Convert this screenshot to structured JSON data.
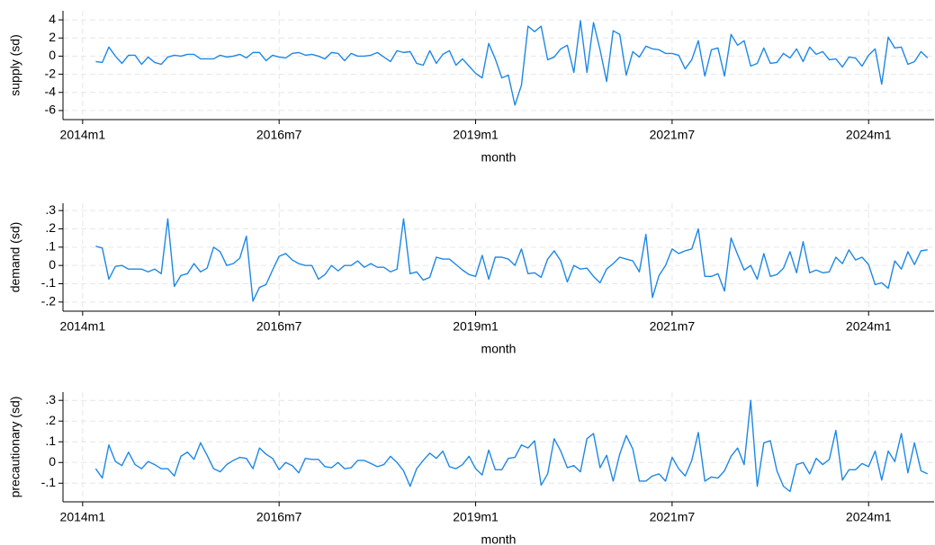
{
  "chart_data": [
    {
      "type": "line",
      "ylabel": "supply (sd)",
      "xlabel": "month",
      "grid": true,
      "color": "#1e88e5",
      "x": [
        "2014m3",
        "2014m4",
        "2014m5",
        "2014m6",
        "2014m7",
        "2014m8",
        "2014m9",
        "2014m10",
        "2014m11",
        "2014m12",
        "2015m1",
        "2015m2",
        "2015m3",
        "2015m4",
        "2015m5",
        "2015m6",
        "2015m7",
        "2015m8",
        "2015m9",
        "2015m10",
        "2015m11",
        "2015m12",
        "2016m1",
        "2016m2",
        "2016m3",
        "2016m4",
        "2016m5",
        "2016m6",
        "2016m7",
        "2016m8",
        "2016m9",
        "2016m10",
        "2016m11",
        "2016m12",
        "2017m1",
        "2017m2",
        "2017m3",
        "2017m4",
        "2017m5",
        "2017m6",
        "2017m7",
        "2017m8",
        "2017m9",
        "2017m10",
        "2017m11",
        "2017m12",
        "2018m1",
        "2018m2",
        "2018m3",
        "2018m4",
        "2018m5",
        "2018m6",
        "2018m7",
        "2018m8",
        "2018m9",
        "2018m10",
        "2018m11",
        "2018m12",
        "2019m1",
        "2019m2",
        "2019m3",
        "2019m4",
        "2019m5",
        "2019m6",
        "2019m7",
        "2019m8",
        "2019m9",
        "2019m10",
        "2019m11",
        "2019m12",
        "2020m1",
        "2020m2",
        "2020m3",
        "2020m4",
        "2020m5",
        "2020m6",
        "2020m7",
        "2020m8",
        "2020m9",
        "2020m10",
        "2020m11",
        "2020m12",
        "2021m1",
        "2021m2",
        "2021m3",
        "2021m4",
        "2021m5",
        "2021m6",
        "2021m7",
        "2021m8",
        "2021m9",
        "2021m10",
        "2021m11",
        "2021m12",
        "2022m1",
        "2022m2",
        "2022m3",
        "2022m4",
        "2022m5",
        "2022m6",
        "2022m7",
        "2022m8",
        "2022m9",
        "2022m10",
        "2022m11",
        "2022m12",
        "2023m1",
        "2023m2",
        "2023m3",
        "2023m4",
        "2023m5",
        "2023m6",
        "2023m7",
        "2023m8",
        "2023m9",
        "2023m10",
        "2023m11",
        "2023m12",
        "2024m1",
        "2024m2",
        "2024m3",
        "2024m4",
        "2024m5",
        "2024m6",
        "2024m7",
        "2024m8",
        "2024m9",
        "2024m10"
      ],
      "values": [
        -0.6,
        -0.7,
        1.0,
        0,
        -0.8,
        0.1,
        0.1,
        -0.9,
        -0.1,
        -0.7,
        -0.9,
        -0.1,
        0.1,
        0,
        0.2,
        0.2,
        -0.3,
        -0.3,
        -0.3,
        0.1,
        -0.1,
        0,
        0.2,
        -0.2,
        0.4,
        0.4,
        -0.5,
        0.1,
        -0.1,
        -0.2,
        0.3,
        0.4,
        0.1,
        0.2,
        0,
        -0.3,
        0.4,
        0.3,
        -0.5,
        0.3,
        0,
        0,
        0.1,
        0.4,
        -0.1,
        -0.6,
        0.6,
        0.4,
        0.5,
        -0.8,
        -1,
        0.6,
        -0.8,
        0.2,
        0.6,
        -1,
        -0.3,
        -1.1,
        -1.9,
        -2.4,
        1.4,
        -0.3,
        -2.4,
        -2.1,
        -5.4,
        -3.2,
        3.3,
        2.7,
        3.3,
        -0.4,
        -0.1,
        0.8,
        1.2,
        -1.8,
        3.9,
        -1.8,
        3.7,
        0.7,
        -2.8,
        2.8,
        2.4,
        -2.1,
        0.5,
        -0.1,
        1.1,
        0.8,
        0.7,
        0.3,
        0.3,
        0.1,
        -1.4,
        -0.4,
        1.7,
        -2.2,
        0.7,
        0.9,
        -2.2,
        2.4,
        1.2,
        1.7,
        -1.1,
        -0.8,
        0.9,
        -0.8,
        -0.7,
        0.3,
        -0.2,
        0.8,
        -0.6,
        1.0,
        0.2,
        0.5,
        -0.4,
        -0.3,
        -1.2,
        -0.1,
        -0.2,
        -1.1,
        0.1,
        0.8,
        -3.1,
        2.1,
        0.9,
        1.0,
        -0.9,
        -0.6,
        0.5,
        -0.2
      ],
      "xlim": [
        "2013m10",
        "2024m11"
      ],
      "xticks": [
        "2014m1",
        "2016m7",
        "2019m1",
        "2021m7",
        "2024m1"
      ],
      "ylim": [
        -7,
        5
      ],
      "yticks": [
        -6,
        -4,
        -2,
        0,
        2,
        4
      ]
    },
    {
      "type": "line",
      "ylabel": "demand (sd)",
      "xlabel": "month",
      "grid": true,
      "color": "#1e88e5",
      "x": [
        "2014m3",
        "2014m4",
        "2014m5",
        "2014m6",
        "2014m7",
        "2014m8",
        "2014m9",
        "2014m10",
        "2014m11",
        "2014m12",
        "2015m1",
        "2015m2",
        "2015m3",
        "2015m4",
        "2015m5",
        "2015m6",
        "2015m7",
        "2015m8",
        "2015m9",
        "2015m10",
        "2015m11",
        "2015m12",
        "2016m1",
        "2016m2",
        "2016m3",
        "2016m4",
        "2016m5",
        "2016m6",
        "2016m7",
        "2016m8",
        "2016m9",
        "2016m10",
        "2016m11",
        "2016m12",
        "2017m1",
        "2017m2",
        "2017m3",
        "2017m4",
        "2017m5",
        "2017m6",
        "2017m7",
        "2017m8",
        "2017m9",
        "2017m10",
        "2017m11",
        "2017m12",
        "2018m1",
        "2018m2",
        "2018m3",
        "2018m4",
        "2018m5",
        "2018m6",
        "2018m7",
        "2018m8",
        "2018m9",
        "2018m10",
        "2018m11",
        "2018m12",
        "2019m1",
        "2019m2",
        "2019m3",
        "2019m4",
        "2019m5",
        "2019m6",
        "2019m7",
        "2019m8",
        "2019m9",
        "2019m10",
        "2019m11",
        "2019m12",
        "2020m1",
        "2020m2",
        "2020m3",
        "2020m4",
        "2020m5",
        "2020m6",
        "2020m7",
        "2020m8",
        "2020m9",
        "2020m10",
        "2020m11",
        "2020m12",
        "2021m1",
        "2021m2",
        "2021m3",
        "2021m4",
        "2021m5",
        "2021m6",
        "2021m7",
        "2021m8",
        "2021m9",
        "2021m10",
        "2021m11",
        "2021m12",
        "2022m1",
        "2022m2",
        "2022m3",
        "2022m4",
        "2022m5",
        "2022m6",
        "2022m7",
        "2022m8",
        "2022m9",
        "2022m10",
        "2022m11",
        "2022m12",
        "2023m1",
        "2023m2",
        "2023m3",
        "2023m4",
        "2023m5",
        "2023m6",
        "2023m7",
        "2023m8",
        "2023m9",
        "2023m10",
        "2023m11",
        "2023m12",
        "2024m1",
        "2024m2",
        "2024m3",
        "2024m4",
        "2024m5",
        "2024m6",
        "2024m7",
        "2024m8",
        "2024m9",
        "2024m10"
      ],
      "values": [
        0.105,
        0.095,
        -0.075,
        -0.005,
        0,
        -0.02,
        -0.02,
        -0.02,
        -0.035,
        -0.02,
        -0.045,
        0.255,
        -0.115,
        -0.055,
        -0.045,
        0.01,
        -0.035,
        -0.015,
        0.1,
        0.075,
        0,
        0.01,
        0.04,
        0.16,
        -0.195,
        -0.12,
        -0.105,
        -0.025,
        0.05,
        0.065,
        0.03,
        0.01,
        0,
        0,
        -0.075,
        -0.05,
        0,
        -0.03,
        0,
        0,
        0.025,
        -0.01,
        0.01,
        -0.01,
        -0.01,
        -0.035,
        -0.02,
        0.255,
        -0.045,
        -0.035,
        -0.08,
        -0.065,
        0.045,
        0.035,
        0.035,
        0.005,
        -0.025,
        -0.05,
        -0.06,
        0.055,
        -0.075,
        0.045,
        0.045,
        0.035,
        0,
        0.09,
        -0.045,
        -0.04,
        -0.065,
        0.035,
        0.08,
        0.025,
        -0.09,
        0,
        -0.02,
        -0.015,
        -0.06,
        -0.095,
        -0.02,
        0.01,
        0.045,
        0.035,
        0.025,
        -0.035,
        0.17,
        -0.175,
        -0.055,
        0,
        0.09,
        0.065,
        0.08,
        0.09,
        0.2,
        -0.06,
        -0.06,
        -0.045,
        -0.14,
        0.15,
        0.06,
        -0.025,
        0,
        -0.075,
        0.065,
        -0.06,
        -0.05,
        -0.015,
        0.075,
        -0.04,
        0.13,
        -0.04,
        -0.025,
        -0.04,
        -0.035,
        0.045,
        0.01,
        0.085,
        0.03,
        0.045,
        0.005,
        -0.105,
        -0.095,
        -0.125,
        0.025,
        -0.02,
        0.075,
        0.005,
        0.08,
        0.085
      ],
      "xlim": [
        "2013m10",
        "2024m11"
      ],
      "xticks": [
        "2014m1",
        "2016m7",
        "2019m1",
        "2021m7",
        "2024m1"
      ],
      "ylim": [
        -0.25,
        0.34
      ],
      "yticks": [
        {
          "value": -0.2,
          "label": "-.2"
        },
        {
          "value": -0.1,
          "label": "-.1"
        },
        0,
        {
          "value": 0.1,
          "label": ".1"
        },
        {
          "value": 0.2,
          "label": ".2"
        },
        {
          "value": 0.3,
          "label": ".3"
        }
      ]
    },
    {
      "type": "line",
      "ylabel": "precautionary (sd)",
      "xlabel": "month",
      "grid": true,
      "color": "#1e88e5",
      "x": [
        "2014m3",
        "2014m4",
        "2014m5",
        "2014m6",
        "2014m7",
        "2014m8",
        "2014m9",
        "2014m10",
        "2014m11",
        "2014m12",
        "2015m1",
        "2015m2",
        "2015m3",
        "2015m4",
        "2015m5",
        "2015m6",
        "2015m7",
        "2015m8",
        "2015m9",
        "2015m10",
        "2015m11",
        "2015m12",
        "2016m1",
        "2016m2",
        "2016m3",
        "2016m4",
        "2016m5",
        "2016m6",
        "2016m7",
        "2016m8",
        "2016m9",
        "2016m10",
        "2016m11",
        "2016m12",
        "2017m1",
        "2017m2",
        "2017m3",
        "2017m4",
        "2017m5",
        "2017m6",
        "2017m7",
        "2017m8",
        "2017m9",
        "2017m10",
        "2017m11",
        "2017m12",
        "2018m1",
        "2018m2",
        "2018m3",
        "2018m4",
        "2018m5",
        "2018m6",
        "2018m7",
        "2018m8",
        "2018m9",
        "2018m10",
        "2018m11",
        "2018m12",
        "2019m1",
        "2019m2",
        "2019m3",
        "2019m4",
        "2019m5",
        "2019m6",
        "2019m7",
        "2019m8",
        "2019m9",
        "2019m10",
        "2019m11",
        "2019m12",
        "2020m1",
        "2020m2",
        "2020m3",
        "2020m4",
        "2020m5",
        "2020m6",
        "2020m7",
        "2020m8",
        "2020m9",
        "2020m10",
        "2020m11",
        "2020m12",
        "2021m1",
        "2021m2",
        "2021m3",
        "2021m4",
        "2021m5",
        "2021m6",
        "2021m7",
        "2021m8",
        "2021m9",
        "2021m10",
        "2021m11",
        "2021m12",
        "2022m1",
        "2022m2",
        "2022m3",
        "2022m4",
        "2022m5",
        "2022m6",
        "2022m7",
        "2022m8",
        "2022m9",
        "2022m10",
        "2022m11",
        "2022m12",
        "2023m1",
        "2023m2",
        "2023m3",
        "2023m4",
        "2023m5",
        "2023m6",
        "2023m7",
        "2023m8",
        "2023m9",
        "2023m10",
        "2023m11",
        "2023m12",
        "2024m1",
        "2024m2",
        "2024m3",
        "2024m4",
        "2024m5",
        "2024m6",
        "2024m7",
        "2024m8",
        "2024m9",
        "2024m10"
      ],
      "values": [
        -0.03,
        -0.075,
        0.085,
        0.005,
        -0.015,
        0.05,
        -0.01,
        -0.03,
        0.005,
        -0.01,
        -0.03,
        -0.03,
        -0.065,
        0.03,
        0.05,
        0.015,
        0.095,
        0.035,
        -0.03,
        -0.045,
        -0.01,
        0.01,
        0.025,
        0.02,
        -0.03,
        0.07,
        0.04,
        0.02,
        -0.035,
        0,
        -0.015,
        -0.05,
        0.02,
        0.015,
        0.015,
        -0.02,
        -0.025,
        0,
        -0.03,
        -0.025,
        0.01,
        0.01,
        -0.005,
        -0.02,
        -0.01,
        0.03,
        0,
        -0.04,
        -0.115,
        -0.03,
        0.01,
        0.045,
        0.02,
        0.055,
        -0.02,
        -0.03,
        -0.01,
        0.03,
        -0.03,
        -0.06,
        0.06,
        -0.035,
        -0.035,
        0.02,
        0.025,
        0.085,
        0.07,
        0.105,
        -0.11,
        -0.055,
        0.115,
        0.055,
        -0.025,
        -0.015,
        -0.045,
        0.115,
        0.14,
        -0.025,
        0.035,
        -0.09,
        0.04,
        0.13,
        0.065,
        -0.09,
        -0.09,
        -0.065,
        -0.055,
        -0.09,
        0.025,
        -0.03,
        -0.065,
        0.01,
        0.145,
        -0.09,
        -0.07,
        -0.075,
        -0.04,
        0.03,
        0.07,
        -0.01,
        0.3,
        -0.115,
        0.095,
        0.105,
        -0.04,
        -0.115,
        -0.14,
        -0.01,
        0,
        -0.055,
        0.02,
        -0.01,
        0.015,
        0.155,
        -0.085,
        -0.035,
        -0.035,
        -0.005,
        -0.02,
        0.055,
        -0.085,
        0.055,
        0.005,
        0.14,
        -0.05,
        0.095,
        -0.04,
        -0.055
      ],
      "xlim": [
        "2013m10",
        "2024m11"
      ],
      "xticks": [
        "2014m1",
        "2016m7",
        "2019m1",
        "2021m7",
        "2024m1"
      ],
      "ylim": [
        -0.19,
        0.34
      ],
      "yticks": [
        {
          "value": -0.1,
          "label": "-.1"
        },
        0,
        {
          "value": 0.1,
          "label": ".1"
        },
        {
          "value": 0.2,
          "label": ".2"
        },
        {
          "value": 0.3,
          "label": ".3"
        }
      ]
    }
  ]
}
